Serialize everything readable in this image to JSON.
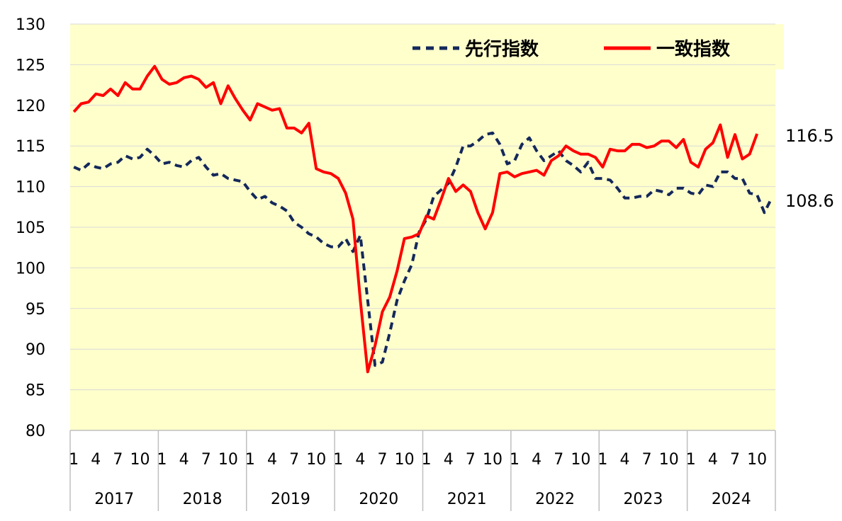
{
  "chart_data": {
    "type": "line",
    "ylim": [
      80,
      130
    ],
    "y_ticks": [
      "80",
      "85",
      "90",
      "95",
      "100",
      "105",
      "110",
      "115",
      "120",
      "125",
      "130"
    ],
    "month_ticks": [
      "1",
      "4",
      "7",
      "10"
    ],
    "years": [
      "2017",
      "2018",
      "2019",
      "2020",
      "2021",
      "2022",
      "2023",
      "2024"
    ],
    "plot_background": "#FFFFCC",
    "series": [
      {
        "name": "先行指数",
        "color": "#14285A",
        "style": "dashed",
        "end_label": "108.6",
        "values": [
          112.4,
          112.0,
          112.8,
          112.4,
          112.2,
          112.8,
          113.0,
          113.8,
          113.4,
          113.6,
          114.6,
          113.8,
          112.8,
          113.0,
          112.6,
          112.4,
          113.2,
          113.6,
          112.4,
          111.4,
          111.6,
          111.0,
          110.8,
          110.6,
          109.4,
          108.4,
          108.8,
          108.0,
          107.6,
          107.0,
          105.6,
          105.0,
          104.2,
          103.8,
          103.0,
          102.6,
          102.6,
          103.6,
          102.0,
          104.0,
          96.0,
          88.0,
          88.4,
          92.0,
          96.0,
          98.4,
          100.4,
          104.4,
          106.0,
          108.8,
          109.6,
          110.4,
          112.4,
          115.0,
          115.0,
          115.6,
          116.4,
          116.6,
          115.2,
          112.8,
          113.2,
          115.2,
          116.0,
          114.4,
          113.2,
          113.8,
          114.4,
          113.2,
          112.6,
          111.8,
          113.0,
          111.0,
          111.0,
          110.8,
          109.8,
          108.6,
          108.6,
          108.8,
          108.8,
          109.6,
          109.4,
          109.0,
          109.8,
          109.8,
          109.2,
          109.0,
          110.2,
          110.0,
          111.8,
          111.8,
          111.0,
          111.0,
          109.2,
          109.0,
          106.8,
          108.6
        ]
      },
      {
        "name": "一致指数",
        "color": "#FF0000",
        "style": "solid",
        "end_label": "116.5",
        "values": [
          119.2,
          120.2,
          120.4,
          121.4,
          121.2,
          122.0,
          121.2,
          122.8,
          122.0,
          122.0,
          123.6,
          124.8,
          123.2,
          122.6,
          122.8,
          123.4,
          123.6,
          123.2,
          122.2,
          122.8,
          120.2,
          122.4,
          120.8,
          119.4,
          118.2,
          120.2,
          119.8,
          119.4,
          119.6,
          117.2,
          117.2,
          116.6,
          117.8,
          112.2,
          111.8,
          111.6,
          111.0,
          109.2,
          106.0,
          96.0,
          87.2,
          90.4,
          94.6,
          96.4,
          99.6,
          103.6,
          103.8,
          104.2,
          106.4,
          106.0,
          108.4,
          111.0,
          109.4,
          110.2,
          109.4,
          106.8,
          104.8,
          106.8,
          111.6,
          111.8,
          111.2,
          111.6,
          111.8,
          112.0,
          111.4,
          113.2,
          113.8,
          115.0,
          114.4,
          114.0,
          114.0,
          113.6,
          112.4,
          114.6,
          114.4,
          114.4,
          115.2,
          115.2,
          114.8,
          115.0,
          115.6,
          115.6,
          114.8,
          115.8,
          113.0,
          112.4,
          114.6,
          115.4,
          117.6,
          113.6,
          116.4,
          113.4,
          114.0,
          116.5
        ]
      }
    ]
  }
}
